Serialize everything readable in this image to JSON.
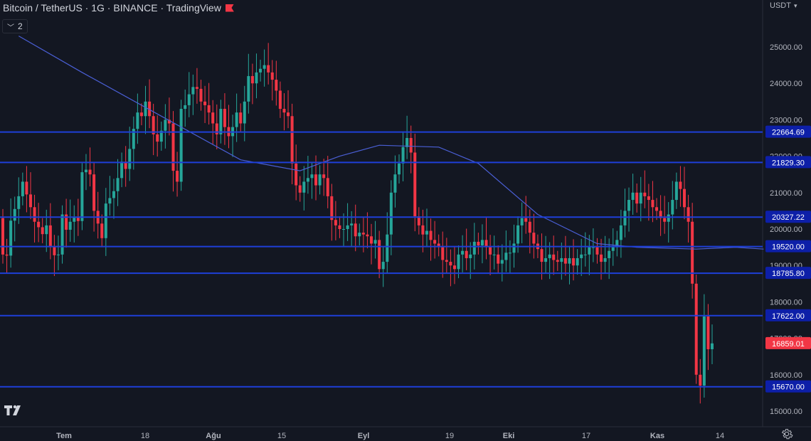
{
  "legend": {
    "symbol_title": "Bitcoin / TetherUS · 1G · BINANCE · TradingView",
    "indicator_count": "2"
  },
  "price_axis": {
    "currency": "USDT",
    "ticks": [
      "25000.00",
      "24000.00",
      "23000.00",
      "22000.00",
      "21000.00",
      "20000.00",
      "19000.00",
      "18000.00",
      "17000.00",
      "16000.00",
      "15000.00"
    ]
  },
  "time_axis": {
    "labels": [
      "Tem",
      "18",
      "Ağu",
      "15",
      "Eyl",
      "19",
      "Eki",
      "17",
      "Kas",
      "14"
    ]
  },
  "horizontal_levels": [
    "22664.69",
    "21829.30",
    "20327.22",
    "19520.00",
    "18785.80",
    "17622.00",
    "15670.00"
  ],
  "last_price": "16859.01",
  "icons": {
    "logo": "tradingview-logo",
    "settings": "gear-icon",
    "collapse": "chevron-down-icon",
    "flag": "flag-icon"
  },
  "colors": {
    "background": "#131722",
    "up_candle": "#26a69a",
    "down_candle": "#f23645",
    "horizontal_line": "#1e3fd8",
    "moving_average": "#4a5fd6",
    "level_badge": "#0d1fa8",
    "last_price_badge": "#f23645"
  },
  "chart_data": {
    "type": "candlestick",
    "symbol": "BTCUSDT",
    "timeframe": "1G",
    "exchange": "BINANCE",
    "ylim": [
      15000,
      25000
    ],
    "candles_close": [
      19300,
      19270,
      20230,
      20550,
      20900,
      21300,
      20950,
      20600,
      20200,
      20050,
      19860,
      20100,
      19500,
      19280,
      19300,
      20400,
      19980,
      20200,
      20310,
      20220,
      21560,
      21630,
      21500,
      20500,
      20150,
      19750,
      20700,
      20850,
      21040,
      21400,
      21850,
      21650,
      22200,
      22750,
      23200,
      23100,
      23500,
      23100,
      22600,
      22400,
      22700,
      23000,
      22900,
      21600,
      21300,
      23300,
      23400,
      23700,
      23900,
      23850,
      23500,
      23400,
      23200,
      22900,
      22600,
      23300,
      22800,
      22550,
      22800,
      23200,
      22900,
      23500,
      24200,
      24000,
      24300,
      24400,
      24500,
      24300,
      24100,
      23800,
      23300,
      23200,
      23100,
      21800,
      21200,
      21000,
      21300,
      21400,
      21500,
      21200,
      21500,
      21400,
      20900,
      20250,
      20100,
      20000,
      20000,
      20100,
      20150,
      19800,
      19900,
      19850,
      19800,
      19600,
      19700,
      18900,
      19100,
      19850,
      21000,
      21500,
      21800,
      22250,
      22500,
      22100,
      20350,
      20100,
      19850,
      19950,
      19700,
      19600,
      19500,
      19150,
      19100,
      19000,
      18900,
      19300,
      19400,
      19200,
      19300,
      19650,
      19550,
      19700,
      19500,
      19300,
      19300,
      19050,
      19150,
      19350,
      19350,
      19600,
      20100,
      20300,
      20200,
      19900,
      19600,
      19450,
      19100,
      19200,
      19300,
      19150,
      19100,
      19200,
      19050,
      19200,
      19000,
      19200,
      19300,
      19300,
      19500,
      19500,
      19300,
      19100,
      19200,
      19400,
      19500,
      19700,
      20100,
      20500,
      20800,
      21000,
      20700,
      21000,
      20900,
      20800,
      20600,
      20500,
      20300,
      20200,
      20400,
      20800,
      21300,
      21100,
      20600,
      20200,
      18500,
      16000,
      15700,
      17600,
      16700,
      16860
    ],
    "moving_average": {
      "points": [
        [
          4,
          25300
        ],
        [
          20,
          24300
        ],
        [
          40,
          23100
        ],
        [
          60,
          21900
        ],
        [
          75,
          21600
        ],
        [
          85,
          22000
        ],
        [
          95,
          22300
        ],
        [
          110,
          22250
        ],
        [
          120,
          21800
        ],
        [
          135,
          20400
        ],
        [
          150,
          19600
        ],
        [
          160,
          19500
        ],
        [
          175,
          19450
        ],
        [
          185,
          19500
        ],
        [
          192,
          19450
        ]
      ]
    },
    "horizontal_lines": [
      22664.69,
      21829.3,
      20327.22,
      19520.0,
      18785.8,
      17622.0,
      15670.0
    ]
  }
}
